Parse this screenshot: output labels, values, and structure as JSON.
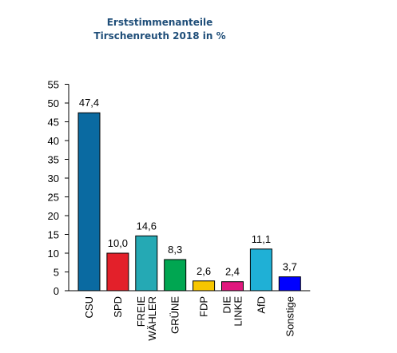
{
  "chart_data": {
    "type": "bar",
    "title_lines": [
      "Erststimmenanteile",
      "Tirschenreuth 2018 in %"
    ],
    "categories": [
      [
        "CSU"
      ],
      [
        "SPD"
      ],
      [
        "FREIE",
        "WÄHLER"
      ],
      [
        "GRÜNE"
      ],
      [
        "FDP"
      ],
      [
        "DIE",
        "LINKE"
      ],
      [
        "AfD"
      ],
      [
        "Sonstige"
      ]
    ],
    "values": [
      47.4,
      10.0,
      14.6,
      8.3,
      2.6,
      2.4,
      11.1,
      3.7
    ],
    "value_labels": [
      "47,4",
      "10,0",
      "14,6",
      "8,3",
      "2,6",
      "2,4",
      "11,1",
      "3,7"
    ],
    "colors": [
      "#0a6aa1",
      "#e3202a",
      "#25a9b4",
      "#00a651",
      "#f7c600",
      "#e0187e",
      "#1fb0d6",
      "#0000ff"
    ],
    "yticks": [
      0,
      5,
      10,
      15,
      20,
      25,
      30,
      35,
      40,
      45,
      50,
      55
    ],
    "ylim": [
      0,
      55
    ],
    "grid": false,
    "legend": "none"
  }
}
